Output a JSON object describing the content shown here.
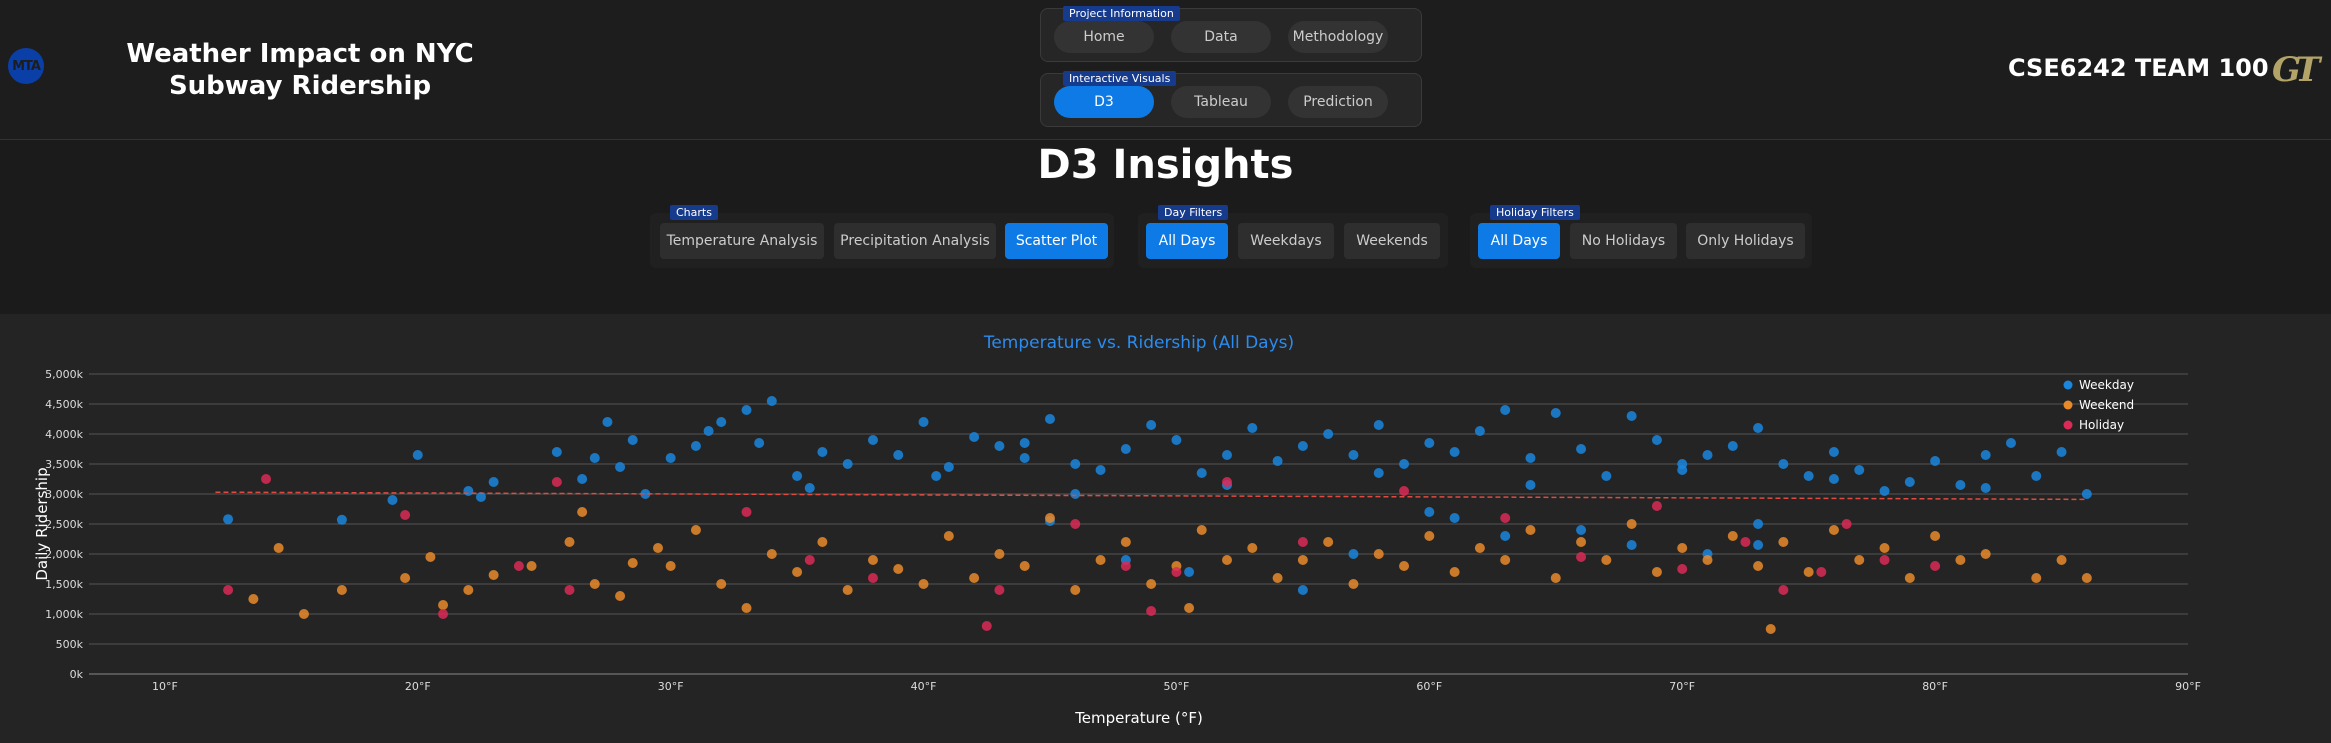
{
  "header": {
    "logo_text": "MTA",
    "title": "Weather Impact on NYC Subway Ridership",
    "team": "CSE6242 TEAM 100",
    "team_logo": "GT"
  },
  "nav": {
    "project_info": {
      "label": "Project Information",
      "items": [
        "Home",
        "Data",
        "Methodology"
      ],
      "active": -1
    },
    "interactive_visuals": {
      "label": "Interactive Visuals",
      "items": [
        "D3",
        "Tableau",
        "Prediction"
      ],
      "active": 0
    }
  },
  "page": {
    "title": "D3 Insights"
  },
  "filters": {
    "charts": {
      "label": "Charts",
      "items": [
        "Temperature Analysis",
        "Precipitation Analysis",
        "Scatter Plot"
      ],
      "active": 2
    },
    "day": {
      "label": "Day Filters",
      "items": [
        "All Days",
        "Weekdays",
        "Weekends"
      ],
      "active": 0
    },
    "holiday": {
      "label": "Holiday Filters",
      "items": [
        "All Days",
        "No Holidays",
        "Only Holidays"
      ],
      "active": 0
    }
  },
  "colors": {
    "accent": "#0d7ae6",
    "weekday": "#1a86dd",
    "weekend": "#e8892a",
    "holiday": "#dc2a56",
    "trend": "#e04a3f"
  },
  "chart_data": {
    "type": "scatter",
    "title": "Temperature vs. Ridership (All Days)",
    "xlabel": "Temperature (°F)",
    "ylabel": "Daily Ridership",
    "xlim": [
      7,
      90
    ],
    "ylim": [
      0,
      5000
    ],
    "x_ticks": [
      "10°F",
      "20°F",
      "30°F",
      "40°F",
      "50°F",
      "60°F",
      "70°F",
      "80°F",
      "90°F"
    ],
    "y_ticks": [
      "0k",
      "500k",
      "1,000k",
      "1,500k",
      "2,000k",
      "2,500k",
      "3,000k",
      "3,500k",
      "4,000k",
      "4,500k",
      "5,000k"
    ],
    "grid": true,
    "legend_position": "top-right",
    "trendline": {
      "x": [
        12,
        86
      ],
      "y": [
        3030,
        2910
      ]
    },
    "series": [
      {
        "name": "Weekday",
        "points": [
          [
            12.5,
            2580
          ],
          [
            17,
            2570
          ],
          [
            19,
            2900
          ],
          [
            20,
            3650
          ],
          [
            22,
            3050
          ],
          [
            22.5,
            2950
          ],
          [
            23,
            3200
          ],
          [
            25.5,
            3700
          ],
          [
            26.5,
            3250
          ],
          [
            27,
            3600
          ],
          [
            27.5,
            4200
          ],
          [
            28,
            3450
          ],
          [
            28.5,
            3900
          ],
          [
            29,
            3000
          ],
          [
            30,
            3600
          ],
          [
            31,
            3800
          ],
          [
            31.5,
            4050
          ],
          [
            32,
            4200
          ],
          [
            33,
            4400
          ],
          [
            33.5,
            3850
          ],
          [
            34,
            4550
          ],
          [
            35,
            3300
          ],
          [
            36,
            3700
          ],
          [
            37,
            3500
          ],
          [
            38,
            3900
          ],
          [
            39,
            3650
          ],
          [
            40,
            4200
          ],
          [
            41,
            3450
          ],
          [
            42,
            3950
          ],
          [
            43,
            3800
          ],
          [
            44,
            3600
          ],
          [
            45,
            4250
          ],
          [
            46,
            3500
          ],
          [
            47,
            3400
          ],
          [
            48,
            3750
          ],
          [
            49,
            4150
          ],
          [
            50,
            3900
          ],
          [
            51,
            3350
          ],
          [
            52,
            3650
          ],
          [
            53,
            4100
          ],
          [
            54,
            3550
          ],
          [
            55,
            3800
          ],
          [
            56,
            4000
          ],
          [
            57,
            3650
          ],
          [
            58,
            4150
          ],
          [
            59,
            3500
          ],
          [
            60,
            3850
          ],
          [
            61,
            3700
          ],
          [
            62,
            4050
          ],
          [
            63,
            4400
          ],
          [
            64,
            3600
          ],
          [
            65,
            4350
          ],
          [
            66,
            3750
          ],
          [
            67,
            3300
          ],
          [
            68,
            4300
          ],
          [
            69,
            3900
          ],
          [
            70,
            3500
          ],
          [
            71,
            3650
          ],
          [
            72,
            3800
          ],
          [
            73,
            4100
          ],
          [
            74,
            3500
          ],
          [
            75,
            3300
          ],
          [
            76,
            3700
          ],
          [
            77,
            3400
          ],
          [
            78,
            3050
          ],
          [
            79,
            3200
          ],
          [
            80,
            3550
          ],
          [
            81,
            3150
          ],
          [
            82,
            3650
          ],
          [
            83,
            3850
          ],
          [
            84,
            3300
          ],
          [
            85,
            3700
          ],
          [
            86,
            3000
          ],
          [
            50.5,
            1700
          ],
          [
            55,
            1400
          ],
          [
            68,
            2150
          ],
          [
            73,
            2500
          ],
          [
            63,
            2300
          ],
          [
            57,
            2000
          ],
          [
            60,
            2700
          ],
          [
            48,
            1900
          ],
          [
            66,
            2400
          ],
          [
            71,
            2000
          ],
          [
            45,
            2550
          ],
          [
            35.5,
            3100
          ],
          [
            40.5,
            3300
          ],
          [
            46,
            3000
          ],
          [
            52,
            3150
          ],
          [
            58,
            3350
          ],
          [
            64,
            3150
          ],
          [
            70,
            3400
          ],
          [
            76,
            3250
          ],
          [
            82,
            3100
          ],
          [
            61,
            2600
          ],
          [
            73,
            2150
          ],
          [
            44,
            3850
          ]
        ]
      },
      {
        "name": "Weekend",
        "points": [
          [
            13.5,
            1250
          ],
          [
            14.5,
            2100
          ],
          [
            15.5,
            1000
          ],
          [
            17,
            1400
          ],
          [
            19.5,
            1600
          ],
          [
            20.5,
            1950
          ],
          [
            21,
            1150
          ],
          [
            22,
            1400
          ],
          [
            23,
            1650
          ],
          [
            24.5,
            1800
          ],
          [
            26,
            2200
          ],
          [
            26.5,
            2700
          ],
          [
            27,
            1500
          ],
          [
            28,
            1300
          ],
          [
            28.5,
            1850
          ],
          [
            29.5,
            2100
          ],
          [
            30,
            1800
          ],
          [
            31,
            2400
          ],
          [
            32,
            1500
          ],
          [
            33,
            1100
          ],
          [
            34,
            2000
          ],
          [
            35,
            1700
          ],
          [
            36,
            2200
          ],
          [
            37,
            1400
          ],
          [
            38,
            1900
          ],
          [
            39,
            1750
          ],
          [
            40,
            1500
          ],
          [
            41,
            2300
          ],
          [
            42,
            1600
          ],
          [
            43,
            2000
          ],
          [
            44,
            1800
          ],
          [
            45,
            2600
          ],
          [
            46,
            1400
          ],
          [
            47,
            1900
          ],
          [
            48,
            2200
          ],
          [
            49,
            1500
          ],
          [
            50,
            1800
          ],
          [
            50.5,
            1100
          ],
          [
            51,
            2400
          ],
          [
            52,
            1900
          ],
          [
            53,
            2100
          ],
          [
            54,
            1600
          ],
          [
            55,
            1900
          ],
          [
            56,
            2200
          ],
          [
            57,
            1500
          ],
          [
            58,
            2000
          ],
          [
            59,
            1800
          ],
          [
            60,
            2300
          ],
          [
            61,
            1700
          ],
          [
            62,
            2100
          ],
          [
            63,
            1900
          ],
          [
            64,
            2400
          ],
          [
            65,
            1600
          ],
          [
            66,
            2200
          ],
          [
            67,
            1900
          ],
          [
            68,
            2500
          ],
          [
            69,
            1700
          ],
          [
            70,
            2100
          ],
          [
            71,
            1900
          ],
          [
            72,
            2300
          ],
          [
            73,
            1800
          ],
          [
            73.5,
            750
          ],
          [
            74,
            2200
          ],
          [
            75,
            1700
          ],
          [
            76,
            2400
          ],
          [
            77,
            1900
          ],
          [
            78,
            2100
          ],
          [
            79,
            1600
          ],
          [
            80,
            2300
          ],
          [
            81,
            1900
          ],
          [
            82,
            2000
          ],
          [
            84,
            1600
          ],
          [
            85,
            1900
          ],
          [
            86,
            1600
          ]
        ]
      },
      {
        "name": "Holiday",
        "points": [
          [
            12.5,
            1400
          ],
          [
            14,
            3250
          ],
          [
            19.5,
            2650
          ],
          [
            21,
            1000
          ],
          [
            24,
            1800
          ],
          [
            25.5,
            3200
          ],
          [
            26,
            1400
          ],
          [
            33,
            2700
          ],
          [
            35.5,
            1900
          ],
          [
            38,
            1600
          ],
          [
            42.5,
            800
          ],
          [
            43,
            1400
          ],
          [
            46,
            2500
          ],
          [
            48,
            1800
          ],
          [
            49,
            1050
          ],
          [
            50,
            1700
          ],
          [
            52,
            3200
          ],
          [
            55,
            2200
          ],
          [
            59,
            3050
          ],
          [
            63,
            2600
          ],
          [
            66,
            1950
          ],
          [
            69,
            2800
          ],
          [
            70,
            1750
          ],
          [
            72.5,
            2200
          ],
          [
            74,
            1400
          ],
          [
            75.5,
            1700
          ],
          [
            76.5,
            2500
          ],
          [
            78,
            1900
          ],
          [
            80,
            1800
          ]
        ]
      }
    ]
  }
}
